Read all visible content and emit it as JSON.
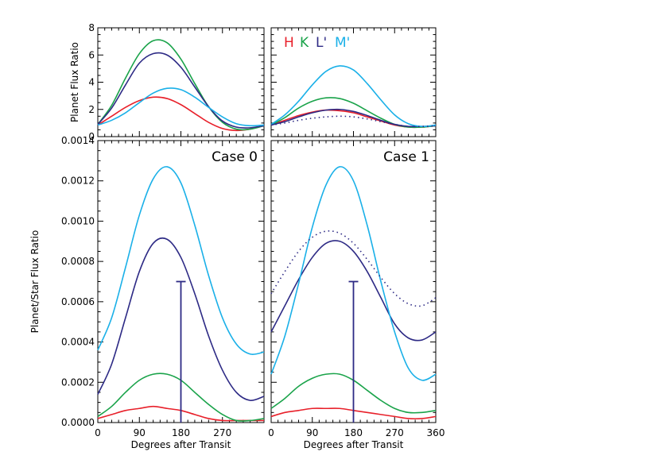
{
  "colors": {
    "H": "#e8202a",
    "K": "#1aa34a",
    "Lp": "#2d2a85",
    "Mp": "#1ab0e8"
  },
  "chart_data": [
    {
      "id": "top-left",
      "type": "line",
      "ylabel": "Planet Flux Ratio",
      "xlabel": "",
      "xlim": [
        0,
        360
      ],
      "ylim": [
        0,
        8
      ],
      "xticks": [
        0,
        90,
        180,
        270
      ],
      "xtick_labels": [
        "",
        "",
        "",
        ""
      ],
      "yticks": [
        0,
        2,
        4,
        6,
        8
      ],
      "ytick_labels": [
        "0",
        "2",
        "4",
        "6",
        "8"
      ],
      "series": [
        {
          "name": "H",
          "color_key": "H",
          "dotted": false,
          "x": [
            0,
            30,
            60,
            90,
            120,
            150,
            180,
            210,
            240,
            270,
            300,
            330,
            360
          ],
          "y": [
            0.85,
            1.5,
            2.15,
            2.65,
            2.9,
            2.8,
            2.35,
            1.7,
            1.05,
            0.6,
            0.45,
            0.55,
            0.8
          ]
        },
        {
          "name": "K",
          "color_key": "K",
          "dotted": false,
          "x": [
            0,
            30,
            60,
            90,
            120,
            150,
            180,
            210,
            240,
            270,
            300,
            330,
            360
          ],
          "y": [
            0.9,
            2.3,
            4.3,
            6.1,
            7.05,
            6.9,
            5.7,
            3.9,
            2.2,
            1.05,
            0.55,
            0.55,
            0.8
          ]
        },
        {
          "name": "L'",
          "color_key": "Lp",
          "dotted": false,
          "x": [
            0,
            30,
            60,
            90,
            120,
            150,
            180,
            210,
            240,
            270,
            300,
            330,
            360
          ],
          "y": [
            0.9,
            2.1,
            3.8,
            5.4,
            6.1,
            6.0,
            5.1,
            3.65,
            2.2,
            1.15,
            0.7,
            0.65,
            0.8
          ]
        },
        {
          "name": "M'",
          "color_key": "Mp",
          "dotted": false,
          "x": [
            0,
            30,
            60,
            90,
            120,
            150,
            180,
            210,
            240,
            270,
            300,
            330,
            360
          ],
          "y": [
            0.85,
            1.2,
            1.75,
            2.5,
            3.2,
            3.55,
            3.45,
            2.9,
            2.15,
            1.45,
            0.95,
            0.8,
            0.85
          ]
        }
      ]
    },
    {
      "id": "top-right",
      "type": "line",
      "ylabel": "",
      "xlabel": "",
      "xlim": [
        0,
        360
      ],
      "ylim": [
        0,
        8
      ],
      "xticks": [
        0,
        90,
        180,
        270,
        360
      ],
      "xtick_labels": [
        "",
        "",
        "",
        "",
        ""
      ],
      "yticks": [
        0,
        2,
        4,
        6,
        8
      ],
      "ytick_labels": [
        "",
        "",
        "",
        "",
        ""
      ],
      "legend": [
        {
          "label": "H",
          "color_key": "H"
        },
        {
          "label": "K",
          "color_key": "K"
        },
        {
          "label": "L'",
          "color_key": "Lp"
        },
        {
          "label": "M'",
          "color_key": "Mp"
        }
      ],
      "series": [
        {
          "name": "H",
          "color_key": "H",
          "dotted": false,
          "x": [
            0,
            30,
            60,
            90,
            120,
            150,
            180,
            210,
            240,
            270,
            300,
            330,
            360
          ],
          "y": [
            0.85,
            1.2,
            1.55,
            1.8,
            1.95,
            1.9,
            1.75,
            1.45,
            1.15,
            0.85,
            0.7,
            0.7,
            0.8
          ]
        },
        {
          "name": "K",
          "color_key": "K",
          "dotted": false,
          "x": [
            0,
            30,
            60,
            90,
            120,
            150,
            180,
            210,
            240,
            270,
            300,
            330,
            360
          ],
          "y": [
            0.85,
            1.4,
            2.1,
            2.6,
            2.85,
            2.8,
            2.45,
            1.9,
            1.35,
            0.9,
            0.7,
            0.7,
            0.8
          ]
        },
        {
          "name": "L'",
          "color_key": "Lp",
          "dotted": false,
          "x": [
            0,
            30,
            60,
            90,
            120,
            150,
            180,
            210,
            240,
            270,
            300,
            330,
            360
          ],
          "y": [
            0.85,
            1.1,
            1.45,
            1.75,
            1.95,
            2.0,
            1.85,
            1.55,
            1.2,
            0.9,
            0.75,
            0.75,
            0.8
          ]
        },
        {
          "name": "M'",
          "color_key": "Mp",
          "dotted": false,
          "x": [
            0,
            30,
            60,
            90,
            120,
            150,
            180,
            210,
            240,
            270,
            300,
            330,
            360
          ],
          "y": [
            0.9,
            1.6,
            2.6,
            3.8,
            4.8,
            5.2,
            4.9,
            3.9,
            2.7,
            1.6,
            0.95,
            0.75,
            0.85
          ]
        },
        {
          "name": "",
          "color_key": "Lp",
          "dotted": true,
          "x": [
            0,
            30,
            60,
            90,
            120,
            150,
            180,
            210,
            240,
            270,
            300,
            330,
            360
          ],
          "y": [
            0.85,
            1.0,
            1.2,
            1.35,
            1.45,
            1.5,
            1.45,
            1.3,
            1.1,
            0.9,
            0.75,
            0.75,
            0.8
          ]
        }
      ]
    },
    {
      "id": "bottom-left",
      "type": "line",
      "ylabel": "Planet/Star Flux Ratio",
      "xlabel": "Degrees after Transit",
      "annotation": "Case 0",
      "xlim": [
        0,
        360
      ],
      "ylim": [
        0,
        0.0014
      ],
      "xticks": [
        0,
        90,
        180,
        270
      ],
      "xtick_labels": [
        "0",
        "90",
        "180",
        "270"
      ],
      "yticks": [
        0,
        0.0002,
        0.0004,
        0.0006,
        0.0008,
        0.001,
        0.0012,
        0.0014
      ],
      "ytick_labels": [
        "0.0000",
        "0.0002",
        "0.0004",
        "0.0006",
        "0.0008",
        "0.0010",
        "0.0012",
        "0.0014"
      ],
      "errorbar": {
        "x": 180,
        "ylow": 0,
        "yhigh": 0.0007,
        "color_key": "Lp"
      },
      "series": [
        {
          "name": "H",
          "color_key": "H",
          "dotted": false,
          "x": [
            0,
            30,
            60,
            90,
            120,
            150,
            180,
            210,
            240,
            270,
            300,
            330,
            360
          ],
          "y": [
            2e-05,
            4e-05,
            6e-05,
            7e-05,
            8e-05,
            7e-05,
            6e-05,
            4e-05,
            2e-05,
            1e-05,
            1e-05,
            1e-05,
            1e-05
          ]
        },
        {
          "name": "K",
          "color_key": "K",
          "dotted": false,
          "x": [
            0,
            30,
            60,
            90,
            120,
            150,
            180,
            210,
            240,
            270,
            300,
            330,
            360
          ],
          "y": [
            3e-05,
            8e-05,
            0.00015,
            0.00021,
            0.00024,
            0.00024,
            0.00021,
            0.00015,
            9e-05,
            4e-05,
            1e-05,
            1e-05,
            2e-05
          ]
        },
        {
          "name": "L'",
          "color_key": "Lp",
          "dotted": false,
          "x": [
            0,
            30,
            60,
            90,
            120,
            150,
            180,
            210,
            240,
            270,
            300,
            330,
            360
          ],
          "y": [
            0.00014,
            0.00029,
            0.00052,
            0.00075,
            0.00089,
            0.00091,
            0.00082,
            0.00064,
            0.00043,
            0.00026,
            0.00015,
            0.00011,
            0.00013
          ]
        },
        {
          "name": "M'",
          "color_key": "Mp",
          "dotted": false,
          "x": [
            0,
            30,
            60,
            90,
            120,
            150,
            180,
            210,
            240,
            270,
            300,
            330,
            360
          ],
          "y": [
            0.00036,
            0.00052,
            0.00077,
            0.00103,
            0.00121,
            0.00127,
            0.00119,
            0.00098,
            0.00073,
            0.00052,
            0.00039,
            0.00034,
            0.00035
          ]
        }
      ]
    },
    {
      "id": "bottom-right",
      "type": "line",
      "ylabel": "",
      "xlabel": "Degrees after Transit",
      "annotation": "Case 1",
      "xlim": [
        0,
        360
      ],
      "ylim": [
        0,
        0.0014
      ],
      "xticks": [
        0,
        90,
        180,
        270,
        360
      ],
      "xtick_labels": [
        "0",
        "90",
        "180",
        "270",
        "360"
      ],
      "yticks": [
        0,
        0.0002,
        0.0004,
        0.0006,
        0.0008,
        0.001,
        0.0012,
        0.0014
      ],
      "ytick_labels": [
        "",
        "",
        "",
        "",
        "",
        "",
        "",
        ""
      ],
      "errorbar": {
        "x": 180,
        "ylow": 0,
        "yhigh": 0.0007,
        "color_key": "Lp"
      },
      "series": [
        {
          "name": "H",
          "color_key": "H",
          "dotted": false,
          "x": [
            0,
            30,
            60,
            90,
            120,
            150,
            180,
            210,
            240,
            270,
            300,
            330,
            360
          ],
          "y": [
            3e-05,
            5e-05,
            6e-05,
            7e-05,
            7e-05,
            7e-05,
            6e-05,
            5e-05,
            4e-05,
            3e-05,
            2e-05,
            2e-05,
            3e-05
          ]
        },
        {
          "name": "K",
          "color_key": "K",
          "dotted": false,
          "x": [
            0,
            30,
            60,
            90,
            120,
            150,
            180,
            210,
            240,
            270,
            300,
            330,
            360
          ],
          "y": [
            7e-05,
            0.00012,
            0.00018,
            0.00022,
            0.00024,
            0.00024,
            0.00021,
            0.00016,
            0.00011,
            7e-05,
            5e-05,
            5e-05,
            6e-05
          ]
        },
        {
          "name": "L'",
          "color_key": "Lp",
          "dotted": false,
          "x": [
            0,
            30,
            60,
            90,
            120,
            150,
            180,
            210,
            240,
            270,
            300,
            330,
            360
          ],
          "y": [
            0.00045,
            0.00058,
            0.00071,
            0.00082,
            0.00089,
            0.0009,
            0.00085,
            0.00075,
            0.00062,
            0.00049,
            0.00042,
            0.00041,
            0.00045
          ]
        },
        {
          "name": "M'",
          "color_key": "Mp",
          "dotted": false,
          "x": [
            0,
            30,
            60,
            90,
            120,
            150,
            180,
            210,
            240,
            270,
            300,
            330,
            360
          ],
          "y": [
            0.00024,
            0.00043,
            0.00069,
            0.00097,
            0.00118,
            0.00127,
            0.0012,
            0.00098,
            0.0007,
            0.00045,
            0.00027,
            0.00021,
            0.00024
          ]
        },
        {
          "name": "",
          "color_key": "Lp",
          "dotted": true,
          "x": [
            0,
            30,
            60,
            90,
            120,
            150,
            180,
            210,
            240,
            270,
            300,
            330,
            360
          ],
          "y": [
            0.00064,
            0.00075,
            0.00085,
            0.00092,
            0.00095,
            0.00094,
            0.00089,
            0.00081,
            0.00072,
            0.00064,
            0.00059,
            0.00058,
            0.00062
          ]
        }
      ]
    }
  ]
}
